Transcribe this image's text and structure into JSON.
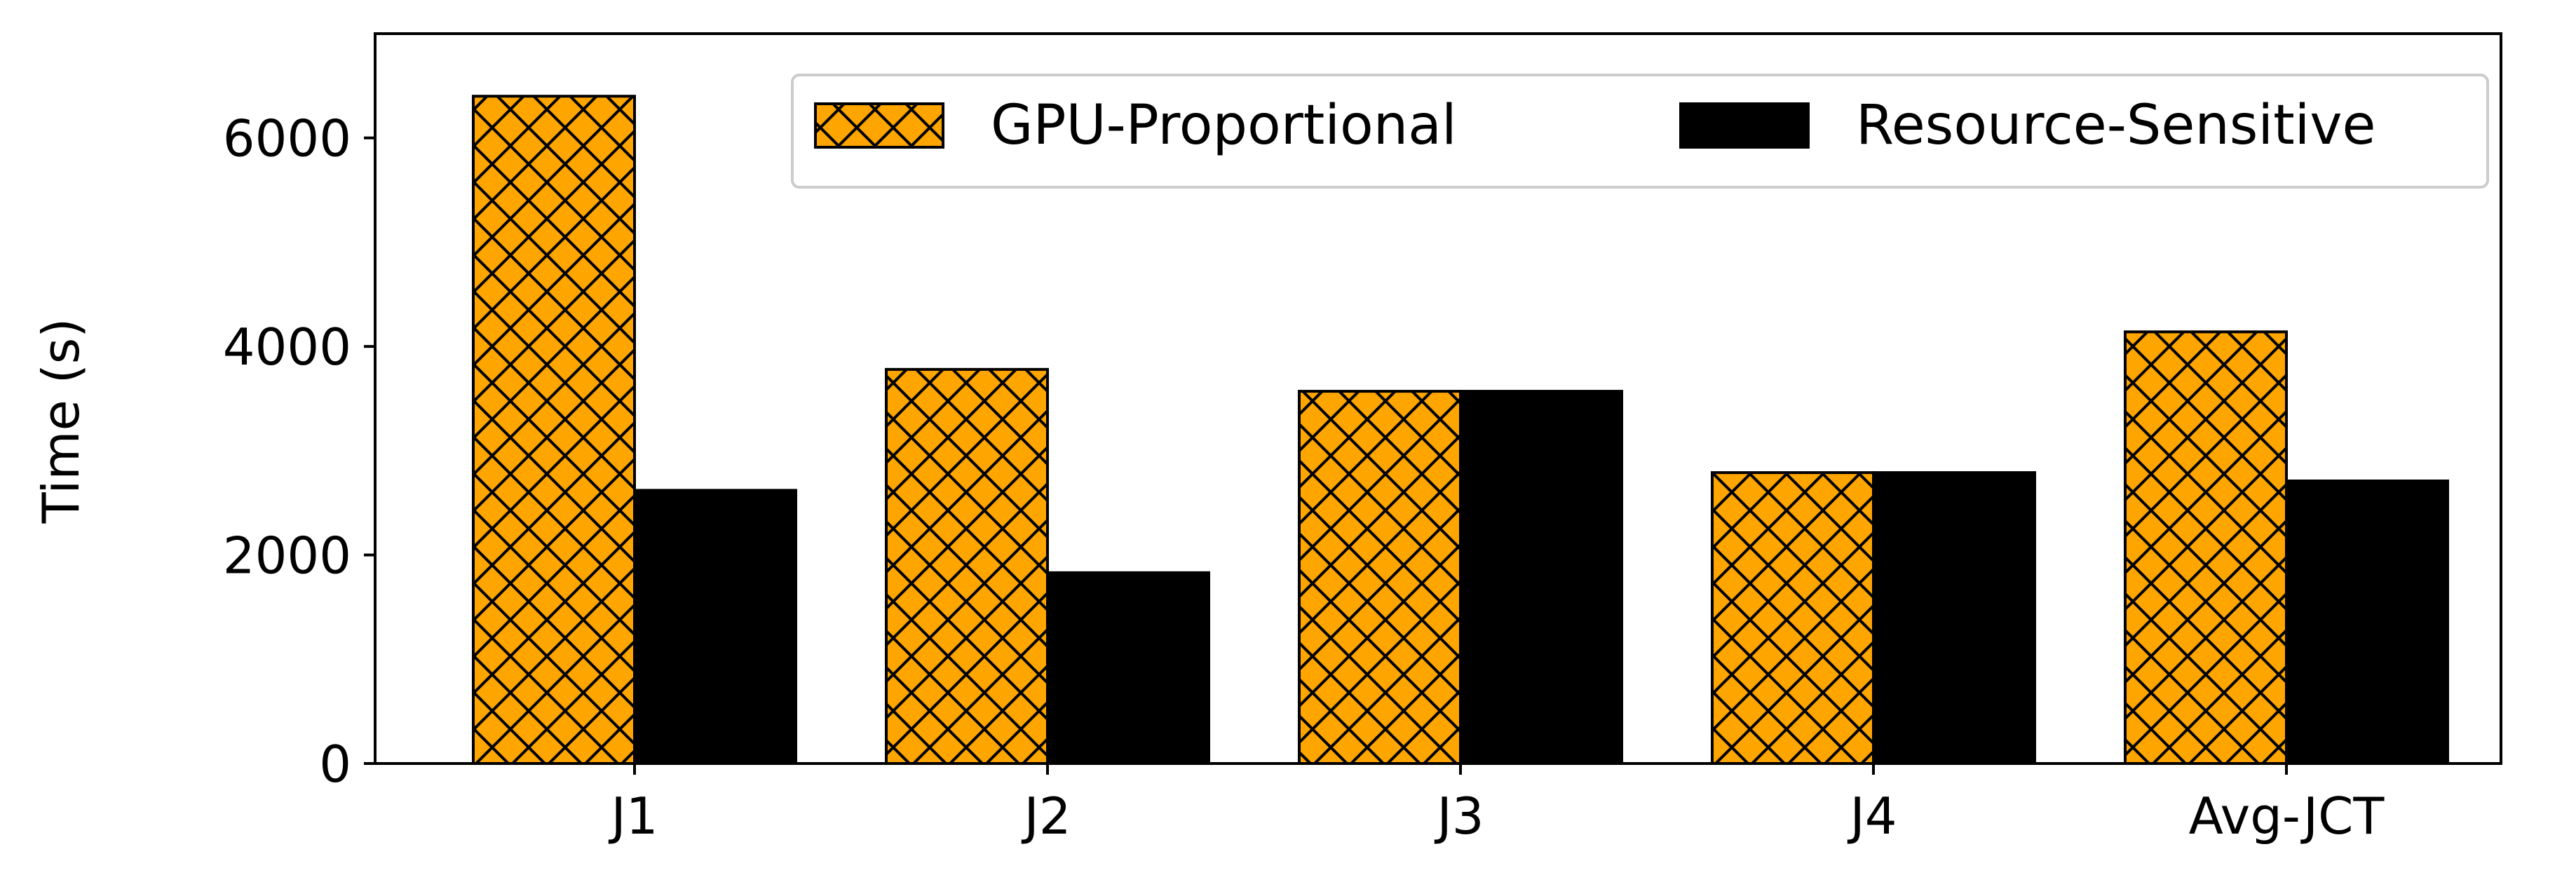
{
  "chart_data": {
    "type": "bar",
    "title": "",
    "xlabel": "",
    "ylabel": "Time (s)",
    "categories": [
      "J1",
      "J2",
      "J3",
      "J4",
      "Avg-JCT"
    ],
    "series": [
      {
        "name": "GPU-Proportional",
        "values": [
          6400,
          3780,
          3570,
          2790,
          4140
        ],
        "color": "#FFA500",
        "hatch": "crosshatch"
      },
      {
        "name": "Resource-Sensitive",
        "values": [
          2620,
          1830,
          3570,
          2790,
          2710
        ],
        "color": "#000000",
        "hatch": "none"
      }
    ],
    "ylim": [
      0,
      7000
    ],
    "yticks": [
      0,
      2000,
      4000,
      6000
    ],
    "grid": false,
    "legend_position": "top-right"
  }
}
